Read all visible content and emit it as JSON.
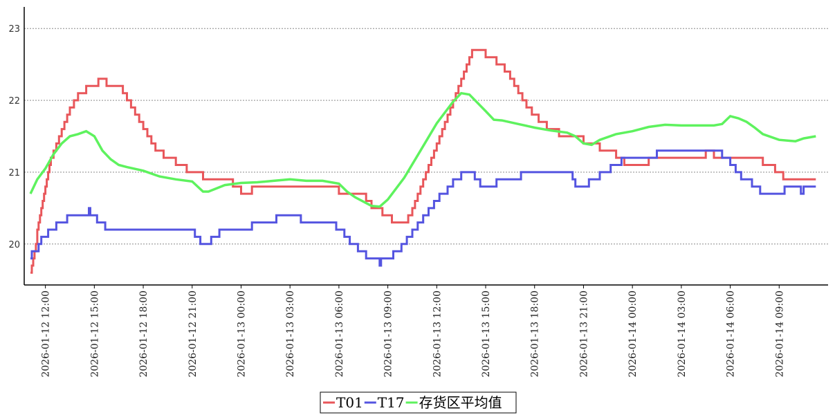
{
  "chart_data": {
    "type": "line",
    "title": "",
    "xlabel": "",
    "ylabel": "",
    "ylim": [
      19.43,
      23.3
    ],
    "y_ticks": [
      "20",
      "21",
      "22",
      "23"
    ],
    "x_ticks": [
      "2026-01-12 12:00",
      "2026-01-12 15:00",
      "2026-01-12 18:00",
      "2026-01-12 21:00",
      "2026-01-13 00:00",
      "2026-01-13 03:00",
      "2026-01-13 06:00",
      "2026-01-13 09:00",
      "2026-01-13 12:00",
      "2026-01-13 15:00",
      "2026-01-13 18:00",
      "2026-01-13 21:00",
      "2026-01-14 00:00",
      "2026-01-14 03:00",
      "2026-01-14 06:00",
      "2026-01-14 09:00"
    ],
    "xlim": [
      "2026-01-12 10:42",
      "2026-01-14 12:00"
    ],
    "grid": "horizontal dotted",
    "legend": "bottom-center",
    "series": [
      {
        "name": "T01",
        "color": "#e8565a",
        "step": true,
        "points": [
          [
            "2026-01-12 11:05",
            19.6
          ],
          [
            "2026-01-12 11:10",
            19.7
          ],
          [
            "2026-01-12 11:15",
            19.8
          ],
          [
            "2026-01-12 11:20",
            19.9
          ],
          [
            "2026-01-12 11:25",
            20.0
          ],
          [
            "2026-01-12 11:30",
            20.2
          ],
          [
            "2026-01-12 11:35",
            20.3
          ],
          [
            "2026-01-12 11:40",
            20.4
          ],
          [
            "2026-01-12 11:45",
            20.5
          ],
          [
            "2026-01-12 11:50",
            20.6
          ],
          [
            "2026-01-12 11:55",
            20.7
          ],
          [
            "2026-01-12 12:00",
            20.8
          ],
          [
            "2026-01-12 12:05",
            20.9
          ],
          [
            "2026-01-12 12:10",
            21.0
          ],
          [
            "2026-01-12 12:15",
            21.1
          ],
          [
            "2026-01-12 12:20",
            21.2
          ],
          [
            "2026-01-12 12:30",
            21.3
          ],
          [
            "2026-01-12 12:40",
            21.4
          ],
          [
            "2026-01-12 12:50",
            21.5
          ],
          [
            "2026-01-12 13:00",
            21.6
          ],
          [
            "2026-01-12 13:10",
            21.7
          ],
          [
            "2026-01-12 13:20",
            21.8
          ],
          [
            "2026-01-12 13:30",
            21.9
          ],
          [
            "2026-01-12 13:45",
            22.0
          ],
          [
            "2026-01-12 14:00",
            22.1
          ],
          [
            "2026-01-12 14:30",
            22.2
          ],
          [
            "2026-01-12 15:15",
            22.3
          ],
          [
            "2026-01-12 15:45",
            22.2
          ],
          [
            "2026-01-12 16:45",
            22.1
          ],
          [
            "2026-01-12 17:00",
            22.0
          ],
          [
            "2026-01-12 17:15",
            21.9
          ],
          [
            "2026-01-12 17:30",
            21.8
          ],
          [
            "2026-01-12 17:45",
            21.7
          ],
          [
            "2026-01-12 18:00",
            21.6
          ],
          [
            "2026-01-12 18:15",
            21.5
          ],
          [
            "2026-01-12 18:30",
            21.4
          ],
          [
            "2026-01-12 18:45",
            21.3
          ],
          [
            "2026-01-12 19:15",
            21.2
          ],
          [
            "2026-01-12 20:00",
            21.1
          ],
          [
            "2026-01-12 20:40",
            21.0
          ],
          [
            "2026-01-12 21:40",
            20.9
          ],
          [
            "2026-01-12 23:30",
            20.8
          ],
          [
            "2026-01-13 00:00",
            20.7
          ],
          [
            "2026-01-13 00:40",
            20.8
          ],
          [
            "2026-01-13 06:00",
            20.7
          ],
          [
            "2026-01-13 07:40",
            20.6
          ],
          [
            "2026-01-13 08:00",
            20.5
          ],
          [
            "2026-01-13 08:40",
            20.4
          ],
          [
            "2026-01-13 09:15",
            20.3
          ],
          [
            "2026-01-13 10:15",
            20.4
          ],
          [
            "2026-01-13 10:30",
            20.5
          ],
          [
            "2026-01-13 10:40",
            20.6
          ],
          [
            "2026-01-13 10:50",
            20.7
          ],
          [
            "2026-01-13 11:00",
            20.8
          ],
          [
            "2026-01-13 11:10",
            20.9
          ],
          [
            "2026-01-13 11:20",
            21.0
          ],
          [
            "2026-01-13 11:30",
            21.1
          ],
          [
            "2026-01-13 11:40",
            21.2
          ],
          [
            "2026-01-13 11:50",
            21.3
          ],
          [
            "2026-01-13 12:00",
            21.4
          ],
          [
            "2026-01-13 12:10",
            21.5
          ],
          [
            "2026-01-13 12:20",
            21.6
          ],
          [
            "2026-01-13 12:30",
            21.7
          ],
          [
            "2026-01-13 12:40",
            21.8
          ],
          [
            "2026-01-13 12:50",
            21.9
          ],
          [
            "2026-01-13 13:00",
            22.0
          ],
          [
            "2026-01-13 13:10",
            22.1
          ],
          [
            "2026-01-13 13:20",
            22.2
          ],
          [
            "2026-01-13 13:30",
            22.3
          ],
          [
            "2026-01-13 13:40",
            22.4
          ],
          [
            "2026-01-13 13:50",
            22.5
          ],
          [
            "2026-01-13 14:00",
            22.6
          ],
          [
            "2026-01-13 14:10",
            22.7
          ],
          [
            "2026-01-13 15:00",
            22.6
          ],
          [
            "2026-01-13 15:40",
            22.5
          ],
          [
            "2026-01-13 16:10",
            22.4
          ],
          [
            "2026-01-13 16:30",
            22.3
          ],
          [
            "2026-01-13 16:45",
            22.2
          ],
          [
            "2026-01-13 17:00",
            22.1
          ],
          [
            "2026-01-13 17:15",
            22.0
          ],
          [
            "2026-01-13 17:30",
            21.9
          ],
          [
            "2026-01-13 17:50",
            21.8
          ],
          [
            "2026-01-13 18:15",
            21.7
          ],
          [
            "2026-01-13 18:45",
            21.6
          ],
          [
            "2026-01-13 19:30",
            21.5
          ],
          [
            "2026-01-13 21:00",
            21.4
          ],
          [
            "2026-01-13 22:00",
            21.3
          ],
          [
            "2026-01-13 23:00",
            21.2
          ],
          [
            "2026-01-13 23:30",
            21.1
          ],
          [
            "2026-01-14 01:00",
            21.2
          ],
          [
            "2026-01-14 04:30",
            21.3
          ],
          [
            "2026-01-14 05:00",
            21.2
          ],
          [
            "2026-01-14 08:00",
            21.1
          ],
          [
            "2026-01-14 08:45",
            21.0
          ],
          [
            "2026-01-14 09:15",
            20.9
          ],
          [
            "2026-01-14 11:15",
            20.9
          ]
        ]
      },
      {
        "name": "T17",
        "color": "#5454e0",
        "step": true,
        "points": [
          [
            "2026-01-12 11:05",
            19.8
          ],
          [
            "2026-01-12 11:10",
            19.9
          ],
          [
            "2026-01-12 11:35",
            20.0
          ],
          [
            "2026-01-12 11:45",
            20.1
          ],
          [
            "2026-01-12 12:10",
            20.2
          ],
          [
            "2026-01-12 12:40",
            20.3
          ],
          [
            "2026-01-12 13:20",
            20.4
          ],
          [
            "2026-01-12 14:00",
            20.4
          ],
          [
            "2026-01-12 14:40",
            20.5
          ],
          [
            "2026-01-12 14:45",
            20.4
          ],
          [
            "2026-01-12 15:10",
            20.3
          ],
          [
            "2026-01-12 15:40",
            20.2
          ],
          [
            "2026-01-12 21:10",
            20.1
          ],
          [
            "2026-01-12 21:30",
            20.0
          ],
          [
            "2026-01-12 22:10",
            20.1
          ],
          [
            "2026-01-12 22:40",
            20.2
          ],
          [
            "2026-01-13 00:40",
            20.3
          ],
          [
            "2026-01-13 02:10",
            20.4
          ],
          [
            "2026-01-13 03:40",
            20.3
          ],
          [
            "2026-01-13 05:50",
            20.2
          ],
          [
            "2026-01-13 06:20",
            20.1
          ],
          [
            "2026-01-13 06:40",
            20.0
          ],
          [
            "2026-01-13 07:10",
            19.9
          ],
          [
            "2026-01-13 07:40",
            19.8
          ],
          [
            "2026-01-13 08:30",
            19.7
          ],
          [
            "2026-01-13 08:35",
            19.8
          ],
          [
            "2026-01-13 09:20",
            19.9
          ],
          [
            "2026-01-13 09:50",
            20.0
          ],
          [
            "2026-01-13 10:10",
            20.1
          ],
          [
            "2026-01-13 10:30",
            20.2
          ],
          [
            "2026-01-13 10:50",
            20.3
          ],
          [
            "2026-01-13 11:10",
            20.4
          ],
          [
            "2026-01-13 11:30",
            20.5
          ],
          [
            "2026-01-13 11:50",
            20.6
          ],
          [
            "2026-01-13 12:10",
            20.7
          ],
          [
            "2026-01-13 12:40",
            20.8
          ],
          [
            "2026-01-13 13:00",
            20.9
          ],
          [
            "2026-01-13 13:30",
            21.0
          ],
          [
            "2026-01-13 14:20",
            20.9
          ],
          [
            "2026-01-13 14:40",
            20.8
          ],
          [
            "2026-01-13 15:40",
            20.9
          ],
          [
            "2026-01-13 17:10",
            21.0
          ],
          [
            "2026-01-13 20:20",
            20.9
          ],
          [
            "2026-01-13 20:30",
            20.8
          ],
          [
            "2026-01-13 21:20",
            20.9
          ],
          [
            "2026-01-13 22:00",
            21.0
          ],
          [
            "2026-01-13 22:40",
            21.1
          ],
          [
            "2026-01-13 23:20",
            21.2
          ],
          [
            "2026-01-14 01:30",
            21.3
          ],
          [
            "2026-01-14 05:30",
            21.2
          ],
          [
            "2026-01-14 06:00",
            21.1
          ],
          [
            "2026-01-14 06:20",
            21.0
          ],
          [
            "2026-01-14 06:40",
            20.9
          ],
          [
            "2026-01-14 07:20",
            20.8
          ],
          [
            "2026-01-14 07:50",
            20.7
          ],
          [
            "2026-01-14 09:20",
            20.8
          ],
          [
            "2026-01-14 10:20",
            20.7
          ],
          [
            "2026-01-14 10:30",
            20.8
          ],
          [
            "2026-01-14 11:15",
            20.8
          ]
        ]
      },
      {
        "name": "存货区平均值",
        "color": "#5ef25e",
        "step": false,
        "points": [
          [
            "2026-01-12 11:05",
            20.7
          ],
          [
            "2026-01-12 11:30",
            20.9
          ],
          [
            "2026-01-12 12:00",
            21.05
          ],
          [
            "2026-01-12 12:30",
            21.25
          ],
          [
            "2026-01-12 13:00",
            21.4
          ],
          [
            "2026-01-12 13:30",
            21.5
          ],
          [
            "2026-01-12 14:00",
            21.53
          ],
          [
            "2026-01-12 14:30",
            21.57
          ],
          [
            "2026-01-12 15:00",
            21.5
          ],
          [
            "2026-01-12 15:30",
            21.3
          ],
          [
            "2026-01-12 16:00",
            21.18
          ],
          [
            "2026-01-12 16:30",
            21.1
          ],
          [
            "2026-01-12 17:00",
            21.07
          ],
          [
            "2026-01-12 18:00",
            21.02
          ],
          [
            "2026-01-12 19:00",
            20.94
          ],
          [
            "2026-01-12 20:00",
            20.9
          ],
          [
            "2026-01-12 21:00",
            20.87
          ],
          [
            "2026-01-12 21:40",
            20.73
          ],
          [
            "2026-01-12 22:00",
            20.73
          ],
          [
            "2026-01-12 23:00",
            20.82
          ],
          [
            "2026-01-13 00:00",
            20.85
          ],
          [
            "2026-01-13 01:00",
            20.86
          ],
          [
            "2026-01-13 02:00",
            20.88
          ],
          [
            "2026-01-13 03:00",
            20.9
          ],
          [
            "2026-01-13 04:00",
            20.88
          ],
          [
            "2026-01-13 05:00",
            20.88
          ],
          [
            "2026-01-13 06:00",
            20.84
          ],
          [
            "2026-01-13 06:30",
            20.73
          ],
          [
            "2026-01-13 07:00",
            20.65
          ],
          [
            "2026-01-13 08:00",
            20.53
          ],
          [
            "2026-01-13 08:30",
            20.52
          ],
          [
            "2026-01-13 09:00",
            20.62
          ],
          [
            "2026-01-13 10:00",
            20.92
          ],
          [
            "2026-01-13 11:00",
            21.3
          ],
          [
            "2026-01-13 12:00",
            21.68
          ],
          [
            "2026-01-13 13:00",
            21.98
          ],
          [
            "2026-01-13 13:30",
            22.1
          ],
          [
            "2026-01-13 14:00",
            22.08
          ],
          [
            "2026-01-13 15:00",
            21.85
          ],
          [
            "2026-01-13 15:30",
            21.73
          ],
          [
            "2026-01-13 16:00",
            21.72
          ],
          [
            "2026-01-13 17:00",
            21.67
          ],
          [
            "2026-01-13 18:00",
            21.62
          ],
          [
            "2026-01-13 19:00",
            21.58
          ],
          [
            "2026-01-13 20:00",
            21.55
          ],
          [
            "2026-01-13 20:30",
            21.5
          ],
          [
            "2026-01-13 21:00",
            21.4
          ],
          [
            "2026-01-13 21:30",
            21.38
          ],
          [
            "2026-01-13 22:00",
            21.45
          ],
          [
            "2026-01-13 23:00",
            21.53
          ],
          [
            "2026-01-14 00:00",
            21.57
          ],
          [
            "2026-01-14 01:00",
            21.63
          ],
          [
            "2026-01-14 02:00",
            21.66
          ],
          [
            "2026-01-14 03:00",
            21.65
          ],
          [
            "2026-01-14 04:00",
            21.65
          ],
          [
            "2026-01-14 05:00",
            21.65
          ],
          [
            "2026-01-14 05:30",
            21.67
          ],
          [
            "2026-01-14 06:00",
            21.78
          ],
          [
            "2026-01-14 06:30",
            21.75
          ],
          [
            "2026-01-14 07:00",
            21.7
          ],
          [
            "2026-01-14 07:30",
            21.62
          ],
          [
            "2026-01-14 08:00",
            21.53
          ],
          [
            "2026-01-14 09:00",
            21.45
          ],
          [
            "2026-01-14 10:00",
            21.43
          ],
          [
            "2026-01-14 10:30",
            21.47
          ],
          [
            "2026-01-14 11:15",
            21.5
          ]
        ]
      }
    ]
  }
}
